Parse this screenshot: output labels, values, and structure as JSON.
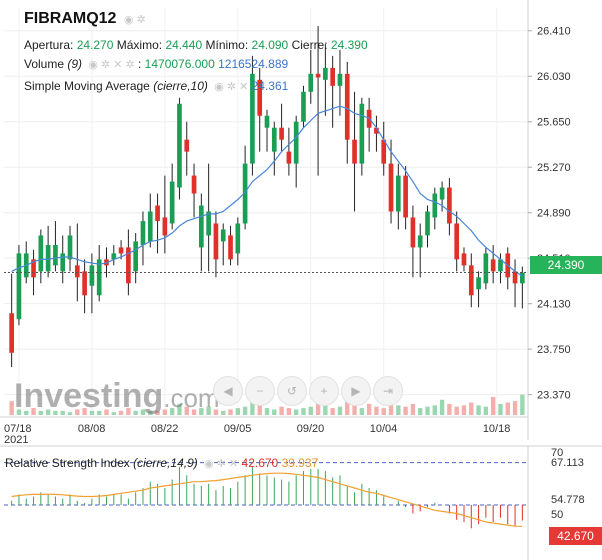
{
  "symbol": "FIBRAMQ12",
  "ohlc": {
    "open_label": "Apertura:",
    "open": "24.270",
    "high_label": "Máximo:",
    "high": "24.440",
    "low_label": "Mínimo:",
    "low": "24.090",
    "close_label": "Cierre:",
    "close": "24.390"
  },
  "volume": {
    "label": "Volume",
    "param": "(9)",
    "value1": "1470076.000",
    "value2": "1216524.889"
  },
  "sma": {
    "label": "Simple Moving Average",
    "param": "(cierre,10)",
    "value": "24.361"
  },
  "rsi": {
    "label": "Relative Strength Index",
    "param": "(cierre,14,9)",
    "value1": "42.670",
    "value2": "39.937"
  },
  "price_badge": "24.390",
  "rsi_badge": "42.670",
  "watermark": {
    "name": "Investing",
    "suffix": ".com"
  },
  "colors": {
    "up": "#1a9e54",
    "down": "#e0302a",
    "sma": "#4a86d8",
    "rsi_signal": "#f0a030",
    "badge_up": "#27b35a",
    "badge_rsi": "#e53935"
  },
  "icons": [
    "eye-icon",
    "settings-icon",
    "close-icon",
    "zoom-in-icon",
    "zoom-out-icon",
    "scroll-left-icon",
    "scroll-right-icon"
  ],
  "chart_data": [
    {
      "type": "candlestick",
      "x_tick_labels": [
        "07/18",
        "08/08",
        "08/22",
        "09/05",
        "09/20",
        "10/04",
        "10/18"
      ],
      "year_label": "2021",
      "y_tick_labels": [
        "26.410",
        "26.030",
        "25.650",
        "25.270",
        "24.890",
        "24.510",
        "24.130",
        "23.750",
        "23.370"
      ],
      "ylim": [
        23.2,
        26.6
      ],
      "last_close_line": 24.39,
      "candles": [
        [
          24.05,
          23.72,
          24.38,
          23.6
        ],
        [
          24.0,
          24.55,
          24.62,
          23.95
        ],
        [
          24.35,
          24.55,
          24.65,
          24.3
        ],
        [
          24.5,
          24.35,
          24.58,
          24.2
        ],
        [
          24.4,
          24.7,
          24.75,
          24.3
        ],
        [
          24.4,
          24.62,
          24.78,
          24.35
        ],
        [
          24.45,
          24.62,
          24.82,
          24.4
        ],
        [
          24.4,
          24.55,
          24.7,
          24.3
        ],
        [
          24.5,
          24.7,
          24.78,
          24.4
        ],
        [
          24.45,
          24.35,
          24.8,
          24.15
        ],
        [
          24.4,
          24.2,
          24.5,
          24.05
        ],
        [
          24.28,
          24.45,
          24.55,
          24.05
        ],
        [
          24.2,
          24.5,
          24.62,
          24.15
        ],
        [
          24.5,
          24.45,
          24.6,
          24.35
        ],
        [
          24.5,
          24.55,
          24.62,
          24.45
        ],
        [
          24.6,
          24.55,
          24.66,
          24.5
        ],
        [
          24.6,
          24.3,
          24.75,
          24.2
        ],
        [
          24.4,
          24.65,
          24.72,
          24.3
        ],
        [
          24.62,
          24.82,
          24.9,
          24.45
        ],
        [
          24.65,
          24.9,
          25.05,
          24.6
        ],
        [
          24.95,
          24.82,
          25.05,
          24.55
        ],
        [
          24.85,
          24.7,
          25.2,
          24.55
        ],
        [
          24.8,
          25.15,
          25.3,
          24.75
        ],
        [
          25.1,
          25.8,
          25.85,
          25.0
        ],
        [
          25.5,
          25.4,
          25.65,
          25.2
        ],
        [
          25.2,
          25.05,
          25.3,
          24.85
        ],
        [
          24.6,
          24.95,
          25.05,
          24.4
        ],
        [
          24.7,
          24.9,
          25.3,
          24.4
        ],
        [
          24.8,
          24.5,
          24.9,
          24.35
        ],
        [
          24.65,
          24.75,
          24.8,
          24.45
        ],
        [
          24.7,
          24.5,
          24.78,
          24.45
        ],
        [
          24.55,
          24.8,
          24.85,
          24.45
        ],
        [
          24.8,
          25.3,
          25.45,
          24.75
        ],
        [
          25.3,
          26.05,
          26.2,
          25.2
        ],
        [
          26.0,
          25.7,
          26.1,
          25.4
        ],
        [
          25.6,
          25.7,
          25.75,
          25.4
        ],
        [
          25.4,
          25.6,
          25.65,
          25.2
        ],
        [
          25.6,
          25.5,
          25.8,
          25.4
        ],
        [
          25.4,
          25.3,
          25.6,
          25.2
        ],
        [
          25.3,
          25.65,
          25.7,
          25.1
        ],
        [
          25.65,
          25.9,
          25.95,
          25.6
        ],
        [
          25.9,
          26.05,
          26.25,
          25.8
        ],
        [
          26.05,
          26.02,
          26.45,
          25.2
        ],
        [
          26.0,
          26.1,
          26.3,
          25.7
        ],
        [
          26.1,
          25.95,
          26.2,
          25.6
        ],
        [
          25.95,
          26.05,
          26.25,
          25.7
        ],
        [
          26.05,
          25.5,
          26.15,
          25.3
        ],
        [
          25.5,
          25.3,
          25.9,
          24.9
        ],
        [
          25.3,
          25.8,
          25.85,
          25.2
        ],
        [
          25.75,
          25.6,
          25.85,
          25.4
        ],
        [
          25.6,
          25.55,
          25.7,
          25.4
        ],
        [
          25.5,
          25.3,
          25.65,
          25.2
        ],
        [
          25.3,
          24.9,
          25.5,
          24.8
        ],
        [
          24.9,
          25.2,
          25.3,
          24.75
        ],
        [
          25.2,
          24.85,
          25.28,
          24.75
        ],
        [
          24.85,
          24.6,
          24.95,
          24.35
        ],
        [
          24.6,
          24.7,
          24.8,
          24.35
        ],
        [
          24.7,
          24.9,
          24.95,
          24.6
        ],
        [
          24.85,
          25.05,
          25.1,
          24.75
        ],
        [
          25.0,
          25.1,
          25.15,
          24.9
        ],
        [
          25.1,
          24.8,
          25.18,
          24.7
        ],
        [
          24.8,
          24.5,
          24.9,
          24.4
        ],
        [
          24.55,
          24.45,
          24.6,
          24.4
        ],
        [
          24.45,
          24.2,
          24.55,
          24.1
        ],
        [
          24.25,
          24.35,
          24.4,
          24.1
        ],
        [
          24.3,
          24.55,
          24.6,
          24.25
        ],
        [
          24.5,
          24.4,
          24.62,
          24.3
        ],
        [
          24.4,
          24.5,
          24.55,
          24.3
        ],
        [
          24.55,
          24.35,
          24.6,
          24.25
        ],
        [
          24.4,
          24.3,
          24.5,
          24.1
        ],
        [
          24.3,
          24.39,
          24.44,
          24.09
        ]
      ],
      "sma": [
        24.4,
        24.43,
        24.45,
        24.48,
        24.5,
        24.5,
        24.51,
        24.52,
        24.52,
        24.5,
        24.48,
        24.47,
        24.46,
        24.47,
        24.5,
        24.52,
        24.55,
        24.58,
        24.62,
        24.65,
        24.66,
        24.68,
        24.72,
        24.78,
        24.82,
        24.84,
        24.86,
        24.88,
        24.88,
        24.9,
        24.95,
        25.0,
        25.06,
        25.15,
        25.2,
        25.25,
        25.32,
        25.4,
        25.46,
        25.52,
        25.6,
        25.66,
        25.72,
        25.74,
        25.76,
        25.78,
        25.76,
        25.72,
        25.7,
        25.68,
        25.6,
        25.5,
        25.4,
        25.32,
        25.24,
        25.15,
        25.05,
        25.0,
        24.98,
        24.95,
        24.9,
        24.86,
        24.8,
        24.74,
        24.66,
        24.6,
        24.55,
        24.5,
        24.45,
        24.4,
        24.36
      ],
      "volume": [
        1.0,
        0.4,
        0.3,
        0.5,
        0.3,
        0.4,
        0.3,
        0.3,
        0.2,
        0.4,
        0.5,
        0.3,
        0.3,
        0.4,
        0.2,
        0.3,
        0.5,
        0.3,
        0.4,
        0.3,
        0.3,
        0.4,
        0.5,
        0.8,
        0.6,
        0.4,
        0.5,
        0.6,
        0.4,
        0.3,
        0.4,
        0.5,
        0.6,
        1.0,
        0.7,
        0.5,
        0.4,
        0.6,
        0.5,
        0.4,
        0.5,
        0.6,
        2.6,
        0.7,
        0.5,
        0.6,
        1.2,
        0.7,
        0.5,
        0.8,
        0.6,
        0.5,
        0.9,
        0.7,
        0.6,
        0.8,
        0.5,
        0.6,
        0.7,
        1.1,
        0.8,
        0.6,
        0.7,
        0.9,
        0.7,
        0.6,
        1.3,
        0.8,
        0.9,
        1.0,
        1.47
      ]
    },
    {
      "type": "rsi",
      "title": "Relative Strength Index",
      "y_tick_labels": [
        "70",
        "67.113",
        "54.778",
        "50"
      ],
      "ylim": [
        25,
        75
      ],
      "levels": [
        70,
        50
      ],
      "rsi": [
        52,
        55,
        53,
        54,
        56,
        55,
        54,
        53,
        55,
        52,
        51,
        53,
        55,
        54,
        55,
        55,
        53,
        56,
        58,
        61,
        60,
        58,
        62,
        68,
        64,
        60,
        59,
        60,
        57,
        59,
        58,
        61,
        64,
        68,
        65,
        64,
        63,
        62,
        61,
        64,
        66,
        67,
        67,
        66,
        63,
        64,
        59,
        56,
        60,
        58,
        57,
        54,
        50,
        52,
        49,
        46,
        47,
        49,
        51,
        50,
        46,
        43,
        42,
        39,
        41,
        44,
        42,
        44,
        41,
        40,
        42.67
      ],
      "signal": [
        54,
        54.5,
        54.8,
        55,
        55,
        55.1,
        55,
        54.8,
        54.5,
        54.2,
        54,
        54,
        54.2,
        54.5,
        55,
        55.5,
        56,
        56.5,
        57,
        58,
        58.5,
        59,
        59.5,
        60,
        60.5,
        61,
        61,
        61.3,
        61.5,
        62,
        62.5,
        63,
        63.5,
        64,
        64.5,
        64.8,
        65,
        65,
        64.8,
        64.5,
        64,
        63.5,
        63,
        62,
        61,
        60,
        59,
        58,
        57,
        56,
        55.5,
        54.5,
        53.5,
        52.5,
        51.5,
        50.5,
        49.5,
        48.5,
        47.5,
        47,
        46.5,
        46,
        45,
        44,
        43,
        42,
        41.5,
        41,
        40.5,
        40,
        39.94
      ]
    }
  ]
}
